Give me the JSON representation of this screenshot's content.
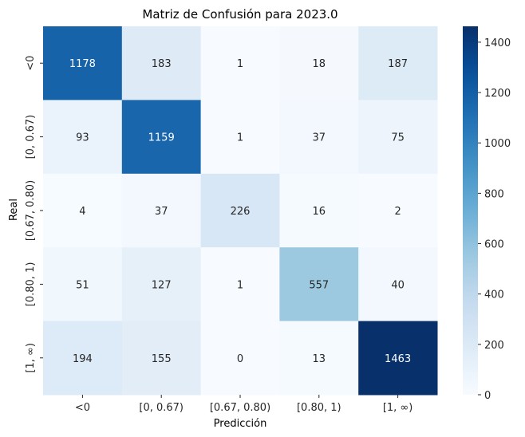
{
  "chart_data": {
    "type": "heatmap",
    "title": "Matriz de Confusión para 2023.0",
    "xlabel": "Predicción",
    "ylabel": "Real",
    "x_categories": [
      "<0",
      "[0, 0.67)",
      "[0.67, 0.80)",
      "[0.80, 1)",
      "[1, ∞)"
    ],
    "y_categories": [
      "<0",
      "[0, 0.67)",
      "[0.67, 0.80)",
      "[0.80, 1)",
      "[1, ∞)"
    ],
    "values": [
      [
        1178,
        183,
        1,
        18,
        187
      ],
      [
        93,
        1159,
        1,
        37,
        75
      ],
      [
        4,
        37,
        226,
        16,
        2
      ],
      [
        51,
        127,
        1,
        557,
        40
      ],
      [
        194,
        155,
        0,
        13,
        1463
      ]
    ],
    "colorscale": "Blues",
    "vmin": 0,
    "vmax": 1463,
    "colorbar_ticks": [
      "0",
      "200",
      "400",
      "600",
      "800",
      "1000",
      "1200",
      "1400"
    ]
  }
}
